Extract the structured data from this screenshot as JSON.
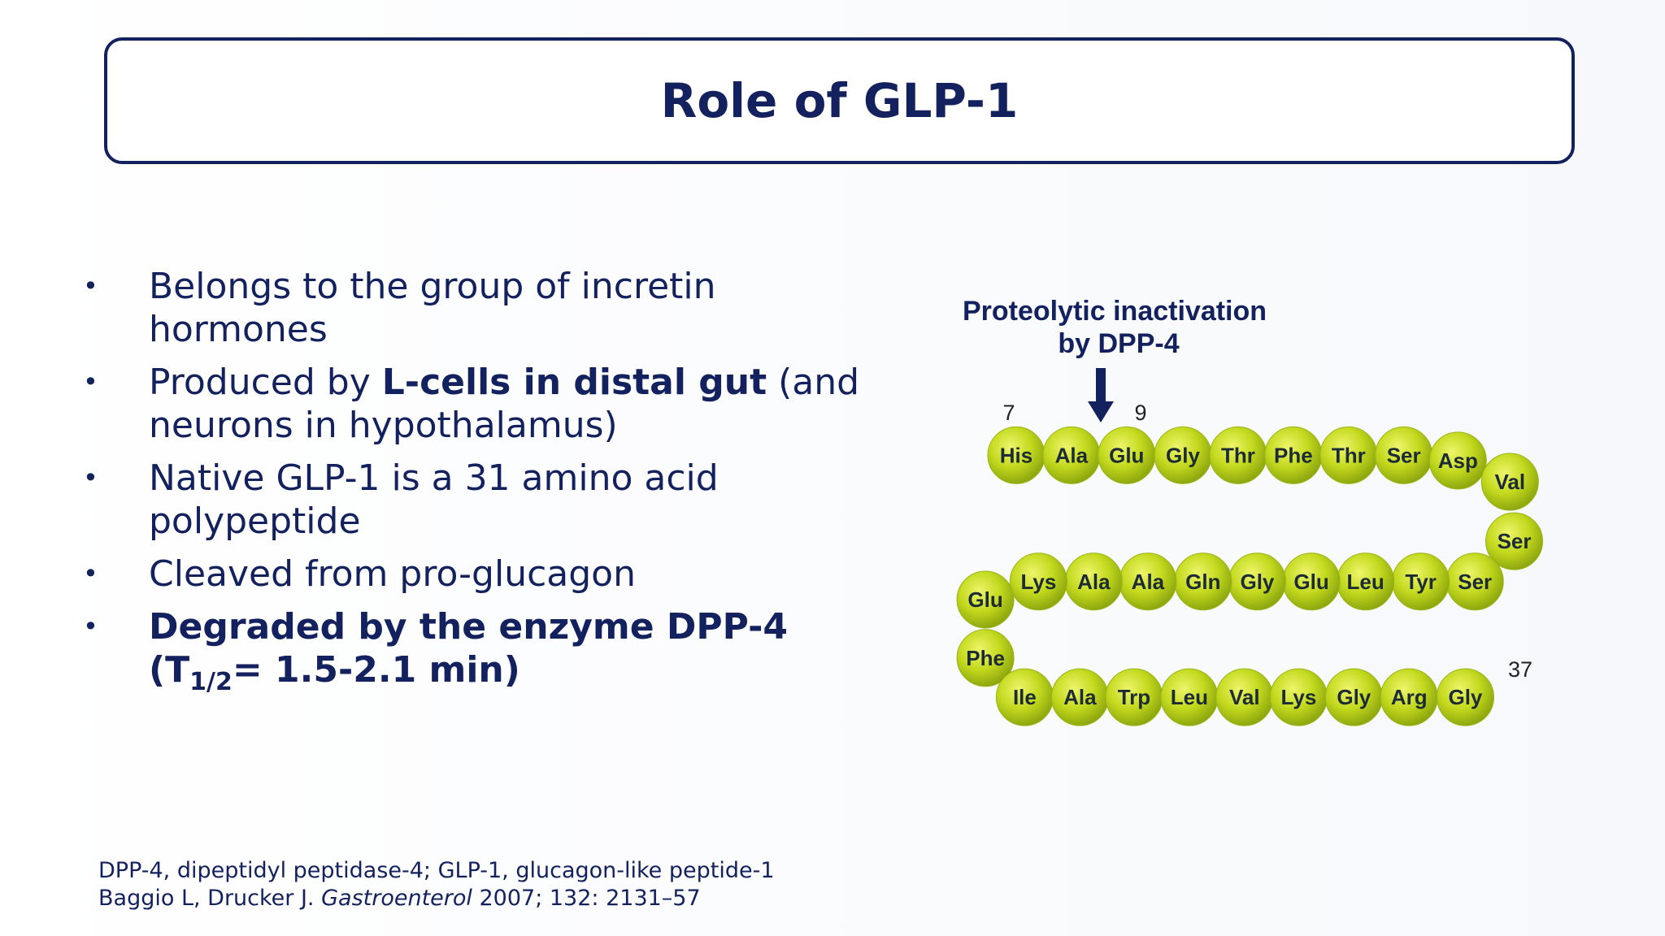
{
  "header": {
    "title": "Role of GLP-1"
  },
  "bullets": [
    [
      "Belongs to the group of incretin hormones"
    ],
    [
      "Produced by ",
      "L-cells in distal gut",
      " (and neurons in hypothalamus)"
    ],
    [
      "Native GLP-1 is a 31 amino acid polypeptide"
    ],
    [
      "Cleaved from pro-glucagon"
    ],
    [
      "Degraded by the enzyme DPP-4 (T",
      "1/2",
      "= 1.5-2.1 min)"
    ]
  ],
  "diagram": {
    "label_line1": "Proteolytic inactivation",
    "label_line2": "by DPP-4",
    "position_start": "7",
    "position_cleave": "9",
    "position_end": "37",
    "residues": [
      "His",
      "Ala",
      "Glu",
      "Gly",
      "Thr",
      "Phe",
      "Thr",
      "Ser",
      "Asp",
      "Val",
      "Ser",
      "Ser",
      "Tyr",
      "Leu",
      "Glu",
      "Gly",
      "Gln",
      "Ala",
      "Ala",
      "Lys",
      "Glu",
      "Phe",
      "Ile",
      "Ala",
      "Trp",
      "Leu",
      "Val",
      "Lys",
      "Gly",
      "Arg",
      "Gly"
    ]
  },
  "footnote": {
    "line1": "DPP-4, dipeptidyl peptidase-4; GLP-1, glucagon-like peptide-1",
    "line2_a": "Baggio L, Drucker J. ",
    "line2_b": "Gastroenterol",
    "line2_c": " 2007; 132: 2131–57"
  }
}
